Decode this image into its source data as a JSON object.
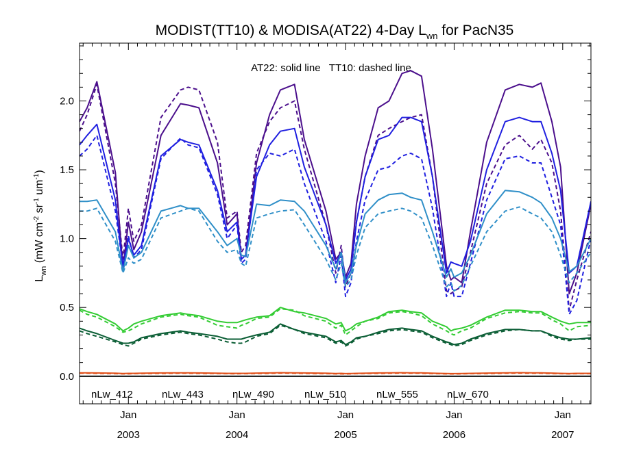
{
  "chart_data": {
    "type": "line",
    "title": "MODIST(TT10) & MODISA(AT22) 4-Day L",
    "title_sub": "wn",
    "title_end": " for PacN35",
    "annotation": "AT22: solid line   TT10: dashed line",
    "ylabel": {
      "main": "L",
      "sub": "wn",
      "rest": " (mW cm",
      "sup1": "-2",
      "mid1": " sr",
      "sup2": "-1",
      "mid2": " um",
      "sup3": "-1",
      "end": ")"
    },
    "ylim": [
      -0.2,
      2.42
    ],
    "yticks": [
      {
        "v": 0.0,
        "label": "0.0"
      },
      {
        "v": 0.5,
        "label": "0.5"
      },
      {
        "v": 1.0,
        "label": "1.0"
      },
      {
        "v": 1.5,
        "label": "1.5"
      },
      {
        "v": 2.0,
        "label": "2.0"
      }
    ],
    "xlim": [
      2002.55,
      2007.26
    ],
    "xticks": [
      {
        "v": 2003.0,
        "month": "Jan",
        "year": "2003"
      },
      {
        "v": 2004.0,
        "month": "Jan",
        "year": "2004"
      },
      {
        "v": 2005.0,
        "month": "Jan",
        "year": "2005"
      },
      {
        "v": 2006.0,
        "month": "Jan",
        "year": "2006"
      },
      {
        "v": 2007.0,
        "month": "Jan",
        "year": "2007"
      }
    ],
    "zero_line": 0.0,
    "x": [
      2002.55,
      2002.62,
      2002.71,
      2002.88,
      2002.95,
      2003.0,
      2003.05,
      2003.12,
      2003.3,
      2003.48,
      2003.55,
      2003.65,
      2003.82,
      2003.91,
      2004.0,
      2004.04,
      2004.08,
      2004.18,
      2004.3,
      2004.4,
      2004.53,
      2004.62,
      2004.82,
      2004.91,
      2004.96,
      2005.0,
      2005.05,
      2005.1,
      2005.18,
      2005.3,
      2005.4,
      2005.52,
      2005.6,
      2005.7,
      2005.8,
      2005.93,
      2005.97,
      2006.0,
      2006.07,
      2006.15,
      2006.3,
      2006.47,
      2006.6,
      2006.72,
      2006.8,
      2006.9,
      2006.98,
      2007.06,
      2007.13,
      2007.26
    ],
    "series": [
      {
        "name": "nLw_412",
        "color": "#4b0f8c",
        "solid": [
          1.85,
          1.95,
          2.14,
          1.48,
          0.78,
          1.12,
          0.92,
          1.05,
          1.75,
          1.98,
          1.97,
          1.95,
          1.55,
          1.1,
          1.18,
          0.85,
          0.88,
          1.55,
          1.9,
          2.08,
          2.12,
          1.72,
          1.2,
          0.85,
          0.9,
          0.72,
          0.82,
          1.25,
          1.6,
          1.95,
          2.0,
          2.2,
          2.22,
          2.18,
          1.65,
          0.8,
          0.7,
          0.72,
          0.68,
          1.05,
          1.7,
          2.08,
          2.12,
          2.1,
          2.13,
          1.85,
          1.52,
          0.6,
          0.75,
          1.25
        ],
        "dashed": [
          1.78,
          1.9,
          2.12,
          1.4,
          0.85,
          1.22,
          0.98,
          1.1,
          1.88,
          2.08,
          2.1,
          2.08,
          1.7,
          1.15,
          1.2,
          0.9,
          0.95,
          1.62,
          1.85,
          1.95,
          2.0,
          1.65,
          1.1,
          0.75,
          0.95,
          0.65,
          0.75,
          1.12,
          1.45,
          1.75,
          1.8,
          1.85,
          1.88,
          1.9,
          1.45,
          0.62,
          0.6,
          0.62,
          0.65,
          0.9,
          1.4,
          1.68,
          1.75,
          1.65,
          1.72,
          1.55,
          1.2,
          0.48,
          0.7,
          1.05
        ]
      },
      {
        "name": "nLw_443",
        "color": "#1f1fe0",
        "solid": [
          1.68,
          1.75,
          1.83,
          1.28,
          0.78,
          1.0,
          0.88,
          0.95,
          1.6,
          1.72,
          1.7,
          1.68,
          1.35,
          1.05,
          1.12,
          0.85,
          0.88,
          1.45,
          1.68,
          1.78,
          1.8,
          1.52,
          1.1,
          0.82,
          0.9,
          0.7,
          0.78,
          1.12,
          1.45,
          1.72,
          1.75,
          1.88,
          1.88,
          1.85,
          1.45,
          0.75,
          0.83,
          0.82,
          0.8,
          0.98,
          1.5,
          1.85,
          1.88,
          1.85,
          1.85,
          1.62,
          1.35,
          0.75,
          0.8,
          1.27
        ],
        "dashed": [
          1.6,
          1.65,
          1.75,
          1.2,
          0.8,
          1.02,
          0.86,
          0.92,
          1.58,
          1.73,
          1.68,
          1.66,
          1.32,
          1.0,
          1.1,
          0.82,
          0.85,
          1.5,
          1.62,
          1.6,
          1.65,
          1.4,
          0.98,
          0.68,
          0.88,
          0.58,
          0.68,
          0.98,
          1.28,
          1.5,
          1.52,
          1.6,
          1.62,
          1.58,
          1.22,
          0.58,
          0.68,
          0.58,
          0.58,
          0.82,
          1.28,
          1.58,
          1.6,
          1.55,
          1.55,
          1.3,
          1.1,
          0.45,
          0.55,
          1.0
        ]
      },
      {
        "name": "nLw_490",
        "color": "#2f8fc8",
        "solid": [
          1.27,
          1.27,
          1.28,
          1.05,
          0.76,
          0.95,
          0.86,
          0.9,
          1.2,
          1.24,
          1.22,
          1.22,
          1.05,
          0.95,
          1.0,
          0.88,
          0.87,
          1.25,
          1.24,
          1.28,
          1.27,
          1.2,
          0.95,
          0.78,
          0.9,
          0.68,
          0.75,
          0.95,
          1.18,
          1.28,
          1.32,
          1.33,
          1.3,
          1.28,
          1.05,
          0.72,
          0.78,
          0.72,
          0.75,
          0.88,
          1.18,
          1.35,
          1.34,
          1.3,
          1.26,
          1.15,
          1.0,
          0.76,
          0.8,
          1.0
        ],
        "dashed": [
          1.2,
          1.2,
          1.22,
          0.98,
          0.75,
          0.86,
          0.82,
          0.85,
          1.15,
          1.2,
          1.22,
          1.2,
          0.98,
          0.9,
          0.92,
          0.82,
          0.8,
          1.15,
          1.18,
          1.2,
          1.21,
          1.1,
          0.85,
          0.7,
          0.82,
          0.65,
          0.7,
          0.88,
          1.08,
          1.18,
          1.2,
          1.22,
          1.2,
          1.15,
          0.95,
          0.65,
          0.68,
          0.62,
          0.66,
          0.8,
          1.05,
          1.2,
          1.23,
          1.18,
          1.15,
          1.05,
          0.88,
          0.68,
          0.75,
          0.9
        ]
      },
      {
        "name": "nLw_510",
        "color": "#33cc33",
        "solid": [
          0.49,
          0.47,
          0.45,
          0.38,
          0.33,
          0.35,
          0.38,
          0.4,
          0.44,
          0.46,
          0.45,
          0.44,
          0.4,
          0.39,
          0.39,
          0.4,
          0.41,
          0.43,
          0.44,
          0.5,
          0.47,
          0.46,
          0.42,
          0.38,
          0.39,
          0.33,
          0.35,
          0.38,
          0.4,
          0.43,
          0.47,
          0.48,
          0.47,
          0.46,
          0.4,
          0.36,
          0.33,
          0.34,
          0.35,
          0.37,
          0.43,
          0.48,
          0.48,
          0.47,
          0.47,
          0.43,
          0.4,
          0.38,
          0.39,
          0.39
        ],
        "dashed": [
          0.48,
          0.45,
          0.43,
          0.36,
          0.32,
          0.33,
          0.35,
          0.38,
          0.43,
          0.45,
          0.44,
          0.43,
          0.37,
          0.36,
          0.35,
          0.37,
          0.38,
          0.42,
          0.43,
          0.49,
          0.48,
          0.44,
          0.4,
          0.35,
          0.37,
          0.3,
          0.33,
          0.36,
          0.4,
          0.42,
          0.46,
          0.47,
          0.46,
          0.44,
          0.38,
          0.33,
          0.31,
          0.3,
          0.33,
          0.35,
          0.42,
          0.46,
          0.47,
          0.46,
          0.46,
          0.41,
          0.38,
          0.33,
          0.36,
          0.37
        ]
      },
      {
        "name": "nLw_555",
        "color": "#0b5e35",
        "solid": [
          0.35,
          0.33,
          0.31,
          0.26,
          0.24,
          0.24,
          0.25,
          0.28,
          0.31,
          0.33,
          0.32,
          0.31,
          0.29,
          0.27,
          0.27,
          0.27,
          0.28,
          0.3,
          0.32,
          0.38,
          0.34,
          0.32,
          0.29,
          0.25,
          0.26,
          0.23,
          0.25,
          0.28,
          0.29,
          0.32,
          0.34,
          0.35,
          0.34,
          0.33,
          0.29,
          0.25,
          0.24,
          0.23,
          0.24,
          0.27,
          0.31,
          0.34,
          0.34,
          0.33,
          0.33,
          0.3,
          0.28,
          0.27,
          0.27,
          0.28
        ],
        "dashed": [
          0.33,
          0.31,
          0.29,
          0.25,
          0.23,
          0.22,
          0.24,
          0.27,
          0.3,
          0.32,
          0.31,
          0.3,
          0.27,
          0.25,
          0.24,
          0.24,
          0.25,
          0.29,
          0.31,
          0.37,
          0.34,
          0.31,
          0.28,
          0.24,
          0.25,
          0.22,
          0.24,
          0.27,
          0.29,
          0.31,
          0.33,
          0.34,
          0.33,
          0.32,
          0.28,
          0.24,
          0.23,
          0.22,
          0.23,
          0.26,
          0.3,
          0.33,
          0.34,
          0.33,
          0.33,
          0.29,
          0.27,
          0.26,
          0.27,
          0.27
        ]
      },
      {
        "name": "nLw_670",
        "color": "#e0501a",
        "solid": [
          0.025,
          0.025,
          0.024,
          0.022,
          0.02,
          0.021,
          0.021,
          0.022,
          0.024,
          0.025,
          0.025,
          0.024,
          0.022,
          0.021,
          0.021,
          0.021,
          0.021,
          0.023,
          0.024,
          0.026,
          0.025,
          0.024,
          0.022,
          0.02,
          0.021,
          0.019,
          0.02,
          0.021,
          0.022,
          0.024,
          0.025,
          0.026,
          0.025,
          0.025,
          0.022,
          0.02,
          0.019,
          0.019,
          0.02,
          0.021,
          0.023,
          0.025,
          0.026,
          0.025,
          0.025,
          0.023,
          0.021,
          0.02,
          0.021,
          0.021
        ],
        "dashed": [
          0.022,
          0.022,
          0.021,
          0.019,
          0.018,
          0.018,
          0.019,
          0.02,
          0.021,
          0.022,
          0.022,
          0.021,
          0.02,
          0.019,
          0.018,
          0.019,
          0.019,
          0.02,
          0.021,
          0.023,
          0.022,
          0.021,
          0.019,
          0.018,
          0.018,
          0.017,
          0.018,
          0.019,
          0.02,
          0.021,
          0.022,
          0.023,
          0.022,
          0.022,
          0.02,
          0.018,
          0.017,
          0.017,
          0.018,
          0.019,
          0.02,
          0.022,
          0.023,
          0.022,
          0.022,
          0.02,
          0.019,
          0.018,
          0.019,
          0.019
        ]
      }
    ]
  }
}
